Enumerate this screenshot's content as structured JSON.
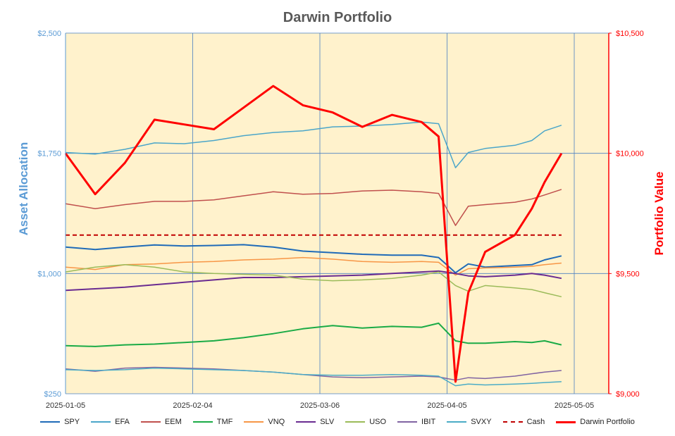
{
  "chart_data": {
    "type": "line",
    "title": "Darwin Portfolio",
    "ylabel": "Asset Allocation",
    "y2label": "Portfolio Value",
    "x_ticks": [
      "2025-01-05",
      "2025-02-04",
      "2025-03-06",
      "2025-04-05",
      "2025-05-05"
    ],
    "ylim": [
      250,
      2500
    ],
    "y_ticks": [
      "$250",
      "$1,000",
      "$1,750",
      "$2,500"
    ],
    "y2lim": [
      9000,
      10500
    ],
    "y2_ticks": [
      "$9,000",
      "$9,500",
      "$10,000",
      "$10,500"
    ],
    "x": [
      "2025-01-05",
      "2025-01-12",
      "2025-01-19",
      "2025-01-26",
      "2025-02-02",
      "2025-02-09",
      "2025-02-16",
      "2025-02-23",
      "2025-03-02",
      "2025-03-09",
      "2025-03-16",
      "2025-03-23",
      "2025-03-30",
      "2025-04-03",
      "2025-04-07",
      "2025-04-10",
      "2025-04-14",
      "2025-04-21",
      "2025-04-25",
      "2025-04-28",
      "2025-05-02"
    ],
    "series": [
      {
        "name": "SPY",
        "axis": "left",
        "color": "#1f6bb8",
        "dash": false,
        "width": 2,
        "values": [
          1165,
          1150,
          1165,
          1178,
          1172,
          1175,
          1180,
          1165,
          1140,
          1130,
          1120,
          1115,
          1115,
          1100,
          1005,
          1060,
          1040,
          1050,
          1055,
          1085,
          1110
        ]
      },
      {
        "name": "EFA",
        "axis": "left",
        "color": "#4ba6c9",
        "dash": false,
        "width": 1.5,
        "values": [
          1755,
          1745,
          1775,
          1815,
          1810,
          1830,
          1860,
          1880,
          1890,
          1915,
          1920,
          1930,
          1945,
          1935,
          1660,
          1755,
          1780,
          1800,
          1830,
          1890,
          1925
        ]
      },
      {
        "name": "EEM",
        "axis": "left",
        "color": "#c0504d",
        "dash": false,
        "width": 1.5,
        "values": [
          1435,
          1405,
          1430,
          1450,
          1450,
          1460,
          1485,
          1510,
          1495,
          1500,
          1515,
          1520,
          1510,
          1500,
          1300,
          1420,
          1430,
          1445,
          1465,
          1490,
          1525
        ]
      },
      {
        "name": "TMF",
        "axis": "left",
        "color": "#1aab46",
        "dash": false,
        "width": 2,
        "values": [
          550,
          545,
          555,
          560,
          570,
          580,
          600,
          625,
          655,
          675,
          660,
          670,
          665,
          690,
          580,
          565,
          565,
          575,
          570,
          580,
          555
        ]
      },
      {
        "name": "VNQ",
        "axis": "left",
        "color": "#f79646",
        "dash": false,
        "width": 1.5,
        "values": [
          1040,
          1025,
          1055,
          1060,
          1070,
          1075,
          1085,
          1090,
          1100,
          1090,
          1075,
          1070,
          1075,
          1070,
          990,
          1030,
          1035,
          1040,
          1045,
          1055,
          1065
        ]
      },
      {
        "name": "SLV",
        "axis": "left",
        "color": "#6a2c91",
        "dash": false,
        "width": 2,
        "values": [
          895,
          905,
          915,
          930,
          945,
          960,
          975,
          975,
          980,
          985,
          990,
          1000,
          1010,
          1015,
          1000,
          985,
          980,
          990,
          1000,
          990,
          970
        ]
      },
      {
        "name": "USO",
        "axis": "left",
        "color": "#9bbb59",
        "dash": false,
        "width": 1.5,
        "values": [
          1010,
          1040,
          1055,
          1040,
          1010,
          1000,
          995,
          990,
          965,
          955,
          960,
          970,
          990,
          1010,
          925,
          890,
          925,
          910,
          900,
          880,
          855
        ]
      },
      {
        "name": "IBIT",
        "axis": "left",
        "color": "#8064a2",
        "dash": false,
        "width": 1.5,
        "values": [
          405,
          390,
          410,
          415,
          410,
          405,
          395,
          385,
          370,
          355,
          350,
          355,
          360,
          355,
          335,
          350,
          345,
          360,
          375,
          385,
          395
        ]
      },
      {
        "name": "SVXY",
        "axis": "left",
        "color": "#4bacc6",
        "dash": false,
        "width": 1.5,
        "values": [
          400,
          395,
          400,
          410,
          405,
          400,
          395,
          385,
          370,
          365,
          365,
          370,
          365,
          360,
          300,
          310,
          305,
          310,
          315,
          320,
          325
        ]
      },
      {
        "name": "Cash",
        "axis": "left",
        "color": "#c00000",
        "dash": true,
        "width": 2,
        "values": [
          1240,
          1240,
          1240,
          1240,
          1240,
          1240,
          1240,
          1240,
          1240,
          1240,
          1240,
          1240,
          1240,
          1240,
          1240,
          1240,
          1240,
          1240,
          1240,
          1240,
          1240
        ]
      },
      {
        "name": "Darwin Portfolio",
        "axis": "right",
        "color": "#ff0000",
        "dash": false,
        "width": 3,
        "values": [
          10000,
          9830,
          9960,
          10140,
          10120,
          10100,
          10190,
          10280,
          10200,
          10170,
          10110,
          10160,
          10130,
          10070,
          9050,
          9420,
          9590,
          9660,
          9770,
          9880,
          10000
        ]
      }
    ]
  },
  "colors": {
    "plot_bg": "#fff2cc",
    "grid": "#4a7fc1",
    "left_axis": "#5b9bd5",
    "right_axis": "#ff0000"
  }
}
